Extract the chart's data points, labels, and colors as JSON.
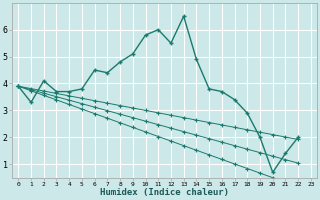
{
  "xlabel": "Humidex (Indice chaleur)",
  "bg_color": "#cce8e8",
  "grid_color": "#ffffff",
  "line_color": "#1a7a6e",
  "x_all": [
    0,
    1,
    2,
    3,
    4,
    5,
    6,
    7,
    8,
    9,
    10,
    11,
    12,
    13,
    14,
    15,
    16,
    17,
    18,
    19,
    20,
    21,
    22,
    23
  ],
  "series_main": [
    3.9,
    3.3,
    4.1,
    3.7,
    3.7,
    3.8,
    4.5,
    4.4,
    4.8,
    5.1,
    5.8,
    6.0,
    5.5,
    6.5,
    4.9,
    3.8,
    3.7,
    3.4,
    2.9,
    2.0,
    0.7,
    1.4,
    2.0,
    null
  ],
  "series_linear1": [
    3.9,
    3.73,
    3.56,
    3.39,
    3.22,
    3.05,
    2.88,
    2.71,
    2.54,
    2.37,
    2.2,
    2.03,
    1.86,
    1.69,
    1.52,
    1.35,
    1.18,
    1.01,
    0.84,
    0.67,
    0.5,
    0.33,
    0.16,
    null
  ],
  "series_linear2": [
    3.9,
    3.77,
    3.64,
    3.51,
    3.38,
    3.25,
    3.12,
    2.99,
    2.86,
    2.73,
    2.6,
    2.47,
    2.34,
    2.21,
    2.08,
    1.95,
    1.82,
    1.69,
    1.56,
    1.43,
    1.3,
    1.17,
    1.04,
    null
  ],
  "series_linear3": [
    3.9,
    3.81,
    3.72,
    3.63,
    3.54,
    3.45,
    3.36,
    3.27,
    3.18,
    3.09,
    3.0,
    2.91,
    2.82,
    2.73,
    2.64,
    2.55,
    2.46,
    2.37,
    2.28,
    2.19,
    2.1,
    2.01,
    1.92,
    null
  ],
  "ylim": [
    0.5,
    7.0
  ],
  "xlim": [
    -0.5,
    23.5
  ],
  "yticks": [
    1,
    2,
    3,
    4,
    5,
    6
  ],
  "xticks": [
    0,
    1,
    2,
    3,
    4,
    5,
    6,
    7,
    8,
    9,
    10,
    11,
    12,
    13,
    14,
    15,
    16,
    17,
    18,
    19,
    20,
    21,
    22,
    23
  ]
}
